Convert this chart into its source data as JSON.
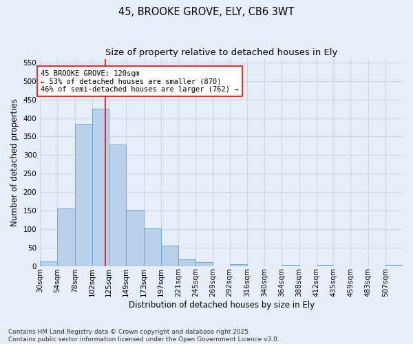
{
  "title1": "45, BROOKE GROVE, ELY, CB6 3WT",
  "title2": "Size of property relative to detached houses in Ely",
  "xlabel": "Distribution of detached houses by size in Ely",
  "ylabel": "Number of detached properties",
  "bin_labels": [
    "30sqm",
    "54sqm",
    "78sqm",
    "102sqm",
    "125sqm",
    "149sqm",
    "173sqm",
    "197sqm",
    "221sqm",
    "245sqm",
    "269sqm",
    "292sqm",
    "316sqm",
    "340sqm",
    "364sqm",
    "388sqm",
    "412sqm",
    "435sqm",
    "459sqm",
    "483sqm",
    "507sqm"
  ],
  "bin_edges": [
    30,
    54,
    78,
    102,
    125,
    149,
    173,
    197,
    221,
    245,
    269,
    292,
    316,
    340,
    364,
    388,
    412,
    435,
    459,
    483,
    507,
    531
  ],
  "bar_values": [
    13,
    156,
    385,
    425,
    328,
    152,
    102,
    55,
    18,
    10,
    0,
    5,
    0,
    0,
    3,
    0,
    2,
    0,
    0,
    0,
    3
  ],
  "bar_color": "#b8d0ea",
  "bar_edge_color": "#6aaad4",
  "property_size": 120,
  "vline_color": "red",
  "annotation_text": "45 BROOKE GROVE: 120sqm\n← 53% of detached houses are smaller (870)\n46% of semi-detached houses are larger (762) →",
  "annotation_bbox_color": "white",
  "annotation_bbox_edgecolor": "red",
  "ylim": [
    0,
    560
  ],
  "yticks": [
    0,
    50,
    100,
    150,
    200,
    250,
    300,
    350,
    400,
    450,
    500,
    550
  ],
  "grid_color": "#c8d4e8",
  "background_color": "#e8eef8",
  "footnote": "Contains HM Land Registry data © Crown copyright and database right 2025.\nContains public sector information licensed under the Open Government Licence v3.0.",
  "title_fontsize": 10.5,
  "subtitle_fontsize": 9.5,
  "annotation_fontsize": 7.5,
  "axis_label_fontsize": 8.5,
  "tick_fontsize": 7.5,
  "footnote_fontsize": 6.5
}
